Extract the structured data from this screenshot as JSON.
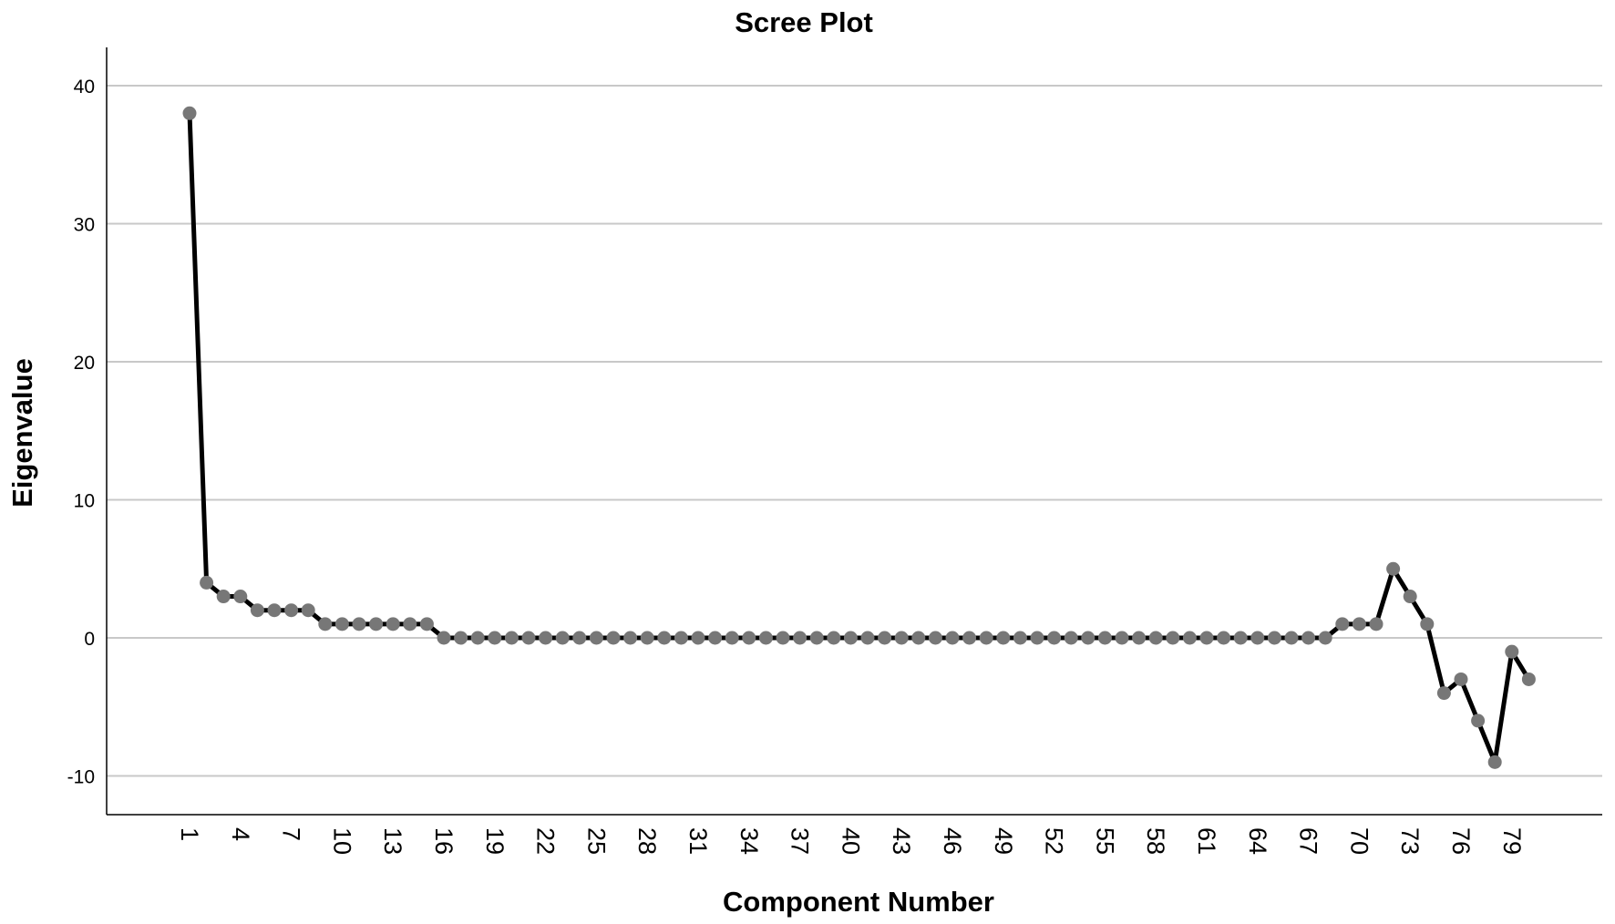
{
  "chart_data": {
    "type": "line",
    "title": "Scree Plot",
    "xlabel": "Component Number",
    "ylabel": "Eigenvalue",
    "xlim": [
      1,
      80
    ],
    "ylim": [
      -10,
      40
    ],
    "x_ticks": [
      "1",
      "4",
      "7",
      "10",
      "13",
      "16",
      "19",
      "22",
      "25",
      "28",
      "31",
      "34",
      "37",
      "40",
      "43",
      "46",
      "49",
      "52",
      "55",
      "58",
      "61",
      "64",
      "67",
      "70",
      "73",
      "76",
      "79"
    ],
    "y_ticks": [
      "40",
      "30",
      "20",
      "10",
      "0",
      "-10"
    ],
    "y_tick_values": [
      40,
      30,
      20,
      10,
      0,
      -10
    ],
    "grid": true,
    "legend": "none",
    "series": [
      {
        "x": [
          1,
          2,
          3,
          4,
          5,
          6,
          7,
          8,
          9,
          10,
          11,
          12,
          13,
          14,
          15,
          16,
          17,
          18,
          19,
          20,
          21,
          22,
          23,
          24,
          25,
          26,
          27,
          28,
          29,
          30,
          31,
          32,
          33,
          34,
          35,
          36,
          37,
          38,
          39,
          40,
          41,
          42,
          43,
          44,
          45,
          46,
          47,
          48,
          49,
          50,
          51,
          52,
          53,
          54,
          55,
          56,
          57,
          58,
          59,
          60,
          61,
          62,
          63,
          64,
          65,
          66,
          67,
          68,
          69,
          70,
          71,
          72,
          73,
          74,
          75,
          76,
          77,
          78,
          79,
          80
        ],
        "values": [
          38,
          4,
          3,
          3,
          2,
          2,
          2,
          2,
          1,
          1,
          1,
          1,
          1,
          1,
          1,
          0,
          0,
          0,
          0,
          0,
          0,
          0,
          0,
          0,
          0,
          0,
          0,
          0,
          0,
          0,
          0,
          0,
          0,
          0,
          0,
          0,
          0,
          0,
          0,
          0,
          0,
          0,
          0,
          0,
          0,
          0,
          0,
          0,
          0,
          0,
          0,
          0,
          0,
          0,
          0,
          0,
          0,
          0,
          0,
          0,
          0,
          0,
          0,
          0,
          0,
          0,
          0,
          0,
          1,
          1,
          1,
          5,
          3,
          1,
          -4,
          -3,
          -6,
          -9,
          -1,
          -3
        ]
      }
    ],
    "colors": {
      "line": "#000000",
      "marker": "#777777",
      "grid": "#c8c8c8",
      "axis": "#000000"
    }
  }
}
